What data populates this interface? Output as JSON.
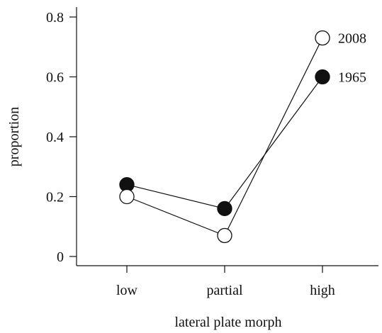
{
  "chart_data": {
    "type": "line",
    "title": "",
    "xlabel": "lateral plate morph",
    "ylabel": "proportion",
    "categories": [
      "low",
      "partial",
      "high"
    ],
    "ylim": [
      0,
      0.8
    ],
    "yticks": [
      0,
      0.2,
      0.4,
      0.6,
      0.8
    ],
    "ytick_labels": [
      "0",
      "0.2",
      "0.4",
      "0.6",
      "0.8"
    ],
    "grid": false,
    "legend": "direct labels at right end of lines",
    "series": [
      {
        "name": "1965",
        "values": [
          0.24,
          0.16,
          0.6
        ],
        "marker": "filled-circle",
        "color": "#111111"
      },
      {
        "name": "2008",
        "values": [
          0.2,
          0.07,
          0.73
        ],
        "marker": "open-circle",
        "color": "#111111"
      }
    ]
  }
}
